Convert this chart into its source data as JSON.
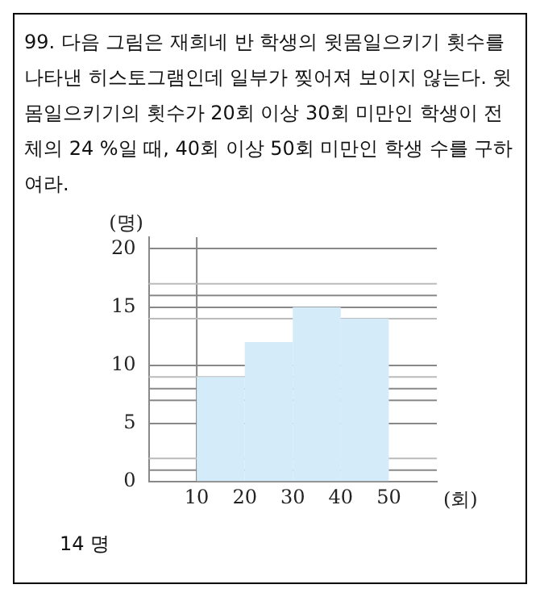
{
  "chart_data": {
    "type": "histogram",
    "title": "99. 다음 그림은 재희네 반 학생의 윗몸일으키기 횟수를 나타낸 히스토그램인데 일부가 찢어져 보이지 않는다. 윗몸일으키기의 횟수가 20회 이상 30회 미만인 학생이 전체의 24 %일 때, 40회 이상 50회 미만인 학생 수를 구하여라.",
    "xlabel": "(회)",
    "ylabel": "(명)",
    "bins": [
      10,
      20,
      30,
      40,
      50
    ],
    "values": [
      9,
      12,
      15,
      14
    ],
    "color": "#d4ecfa",
    "xlim": [
      0,
      60
    ],
    "xticks": [
      10,
      20,
      30,
      40,
      50
    ],
    "ylim": [
      0,
      21
    ],
    "yticks": [
      0,
      5,
      10,
      15,
      20
    ],
    "grid": "y",
    "ref_lines": [
      {
        "axis": "x",
        "value": 10,
        "color": "#888888"
      },
      {
        "axis": "y",
        "value": 1,
        "color": "#888888"
      },
      {
        "axis": "y",
        "value": 2,
        "color": "#bbbbbb"
      },
      {
        "axis": "y",
        "value": 7,
        "color": "#888888"
      },
      {
        "axis": "y",
        "value": 8,
        "color": "#888888"
      },
      {
        "axis": "y",
        "value": 9,
        "color": "#bbbbbb"
      },
      {
        "axis": "y",
        "value": 14,
        "color": "#bbbbbb"
      },
      {
        "axis": "y",
        "value": 16,
        "color": "#888888"
      },
      {
        "axis": "y",
        "value": 17,
        "color": "#bbbbbb"
      }
    ],
    "annotations": [
      "14 명"
    ]
  }
}
